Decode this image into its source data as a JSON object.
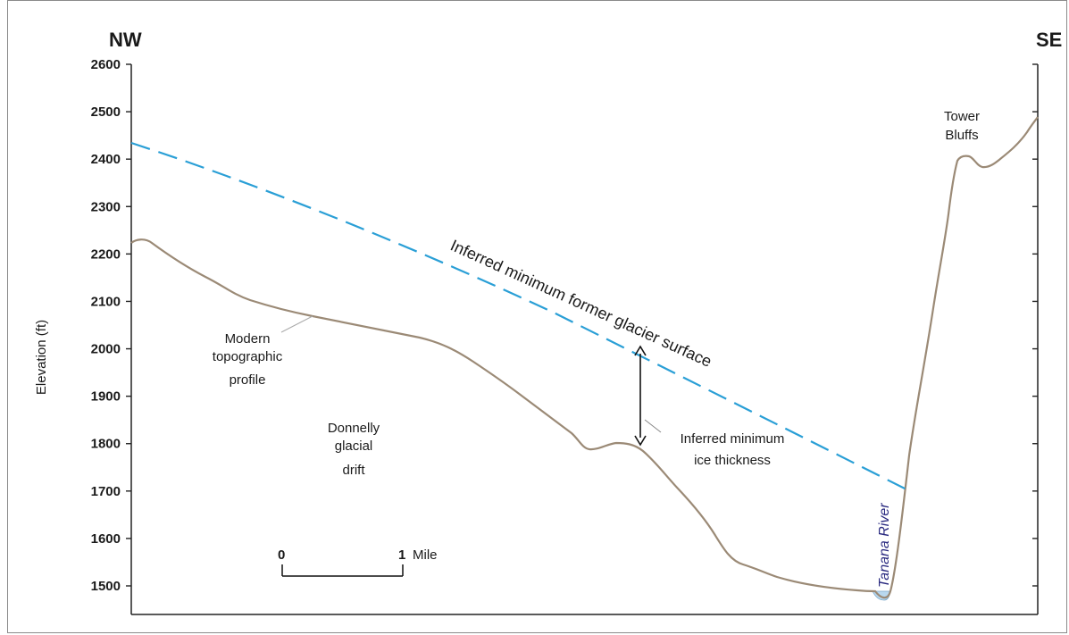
{
  "diagram": {
    "direction_left": "NW",
    "direction_right": "SE",
    "y_axis_label": "Elevation (ft)",
    "y_axis": {
      "min": 1450,
      "max": 2600,
      "tick_step": 100,
      "labeled_ticks": [
        2600,
        2500,
        2400,
        2300,
        2200,
        2100,
        2000,
        1900,
        1800,
        1700,
        1600,
        1500
      ]
    },
    "labels": {
      "glacier_surface": "Inferred minimum former glacier surface",
      "modern_profile_line1": "Modern",
      "modern_profile_line2": "topographic",
      "modern_profile_line3": "profile",
      "drift_line1": "Donnelly",
      "drift_line2": "glacial",
      "drift_line3": "drift",
      "ice_line1": "Inferred minimum",
      "ice_line2": "ice thickness",
      "tower_line1": "Tower",
      "tower_line2": "Bluffs",
      "river": "Tanana River"
    },
    "scale_bar": {
      "start_label": "0",
      "end_label": "1",
      "unit": "Mile"
    },
    "colors": {
      "topography": "#9b8a76",
      "glacier_surface": "#2a9fd6",
      "river_label": "#2a2a80",
      "river_water": "#b9d8ee",
      "axes": "#222222"
    }
  }
}
